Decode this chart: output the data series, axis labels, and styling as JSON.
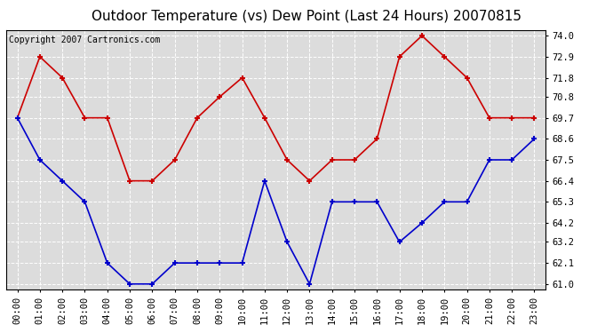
{
  "title": "Outdoor Temperature (vs) Dew Point (Last 24 Hours) 20070815",
  "copyright": "Copyright 2007 Cartronics.com",
  "hours": [
    "00:00",
    "01:00",
    "02:00",
    "03:00",
    "04:00",
    "05:00",
    "06:00",
    "07:00",
    "08:00",
    "09:00",
    "10:00",
    "11:00",
    "12:00",
    "13:00",
    "14:00",
    "15:00",
    "16:00",
    "17:00",
    "18:00",
    "19:00",
    "20:00",
    "21:00",
    "22:00",
    "23:00"
  ],
  "temp": [
    69.7,
    72.9,
    71.8,
    69.7,
    69.7,
    66.4,
    66.4,
    67.5,
    69.7,
    70.8,
    71.8,
    69.7,
    67.5,
    66.4,
    67.5,
    67.5,
    68.6,
    72.9,
    74.0,
    72.9,
    71.8,
    69.7,
    69.7,
    69.7
  ],
  "dew": [
    69.7,
    67.5,
    66.4,
    65.3,
    62.1,
    61.0,
    61.0,
    62.1,
    62.1,
    62.1,
    62.1,
    66.4,
    63.2,
    61.0,
    65.3,
    65.3,
    65.3,
    63.2,
    64.2,
    65.3,
    65.3,
    67.5,
    67.5,
    68.6
  ],
  "temp_color": "#cc0000",
  "dew_color": "#0000cc",
  "bg_color": "#ffffff",
  "plot_bg": "#dcdcdc",
  "grid_color": "#ffffff",
  "ylim_min": 61.0,
  "ylim_max": 74.0,
  "yticks": [
    61.0,
    62.1,
    63.2,
    64.2,
    65.3,
    66.4,
    67.5,
    68.6,
    69.7,
    70.8,
    71.8,
    72.9,
    74.0
  ],
  "title_fontsize": 11,
  "copyright_fontsize": 7,
  "tick_fontsize": 7.5,
  "line_width": 1.2,
  "marker": "+",
  "marker_size": 5,
  "marker_edge_width": 1.5
}
